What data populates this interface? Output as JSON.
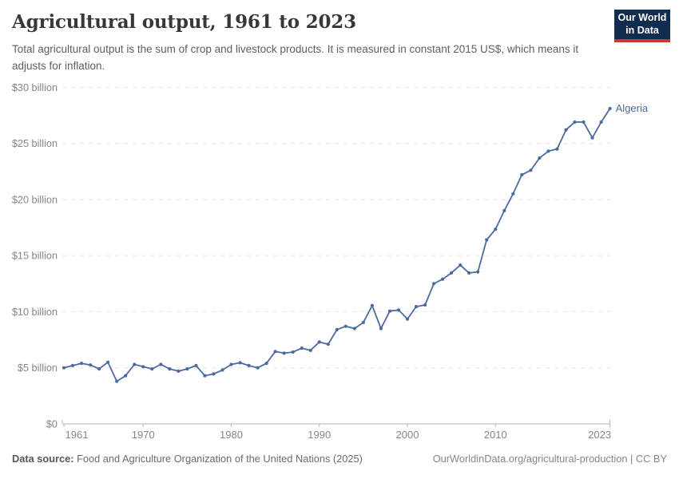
{
  "header": {
    "title": "Agricultural output, 1961 to 2023",
    "subtitle": "Total agricultural output is the sum of crop and livestock products. It is measured in constant 2015 US$, which means it adjusts for inflation.",
    "logo": {
      "line1": "Our World",
      "line2": "in Data"
    }
  },
  "series_label": "Algeria",
  "footer": {
    "source_label": "Data source:",
    "source_text": " Food and Agriculture Organization of the United Nations (2025)",
    "credit": "OurWorldinData.org/agricultural-production | CC BY"
  },
  "colors": {
    "line": "#4c6a9c",
    "series_label": "#4c6a9c",
    "grid": "#e2e2e2",
    "axis": "#b3b3b3",
    "tick_label": "#858585",
    "logo_bg": "#102d50",
    "logo_accent": "#cd372c"
  },
  "chart_data": {
    "type": "line",
    "title": "Agricultural output, 1961 to 2023",
    "xlabel": "",
    "ylabel": "constant 2015 US$",
    "xlim": [
      1961,
      2023
    ],
    "ylim": [
      0,
      30
    ],
    "grid": "horizontal-dashed",
    "legend_position": "end-of-line",
    "yticks": [
      {
        "value": 0,
        "label": "$0"
      },
      {
        "value": 5,
        "label": "$5 billion"
      },
      {
        "value": 10,
        "label": "$10 billion"
      },
      {
        "value": 15,
        "label": "$15 billion"
      },
      {
        "value": 20,
        "label": "$20 billion"
      },
      {
        "value": 25,
        "label": "$25 billion"
      },
      {
        "value": 30,
        "label": "$30 billion"
      }
    ],
    "xticks": [
      1961,
      1970,
      1980,
      1990,
      2000,
      2010,
      2023
    ],
    "x": [
      1961,
      1962,
      1963,
      1964,
      1965,
      1966,
      1967,
      1968,
      1969,
      1970,
      1971,
      1972,
      1973,
      1974,
      1975,
      1976,
      1977,
      1978,
      1979,
      1980,
      1981,
      1982,
      1983,
      1984,
      1985,
      1986,
      1987,
      1988,
      1989,
      1990,
      1991,
      1992,
      1993,
      1994,
      1995,
      1996,
      1997,
      1998,
      1999,
      2000,
      2001,
      2002,
      2003,
      2004,
      2005,
      2006,
      2007,
      2008,
      2009,
      2010,
      2011,
      2012,
      2013,
      2014,
      2015,
      2016,
      2017,
      2018,
      2019,
      2020,
      2021,
      2022,
      2023
    ],
    "series": [
      {
        "name": "Algeria",
        "unit": "billion constant 2015 US$",
        "values": [
          5.0,
          5.2,
          5.4,
          5.25,
          4.9,
          5.5,
          3.8,
          4.3,
          5.3,
          5.1,
          4.9,
          5.3,
          4.9,
          4.7,
          4.9,
          5.2,
          4.3,
          4.45,
          4.8,
          5.3,
          5.45,
          5.2,
          5.0,
          5.4,
          6.45,
          6.3,
          6.4,
          6.75,
          6.55,
          7.3,
          7.1,
          8.4,
          8.7,
          8.5,
          9.05,
          10.55,
          8.5,
          10.05,
          10.15,
          9.35,
          10.45,
          10.6,
          12.5,
          12.9,
          13.45,
          14.15,
          13.45,
          13.55,
          16.4,
          17.35,
          19.0,
          20.5,
          22.2,
          22.6,
          23.7,
          24.3,
          24.5,
          26.2,
          26.9,
          26.9,
          25.5,
          26.9,
          28.1
        ]
      }
    ]
  }
}
